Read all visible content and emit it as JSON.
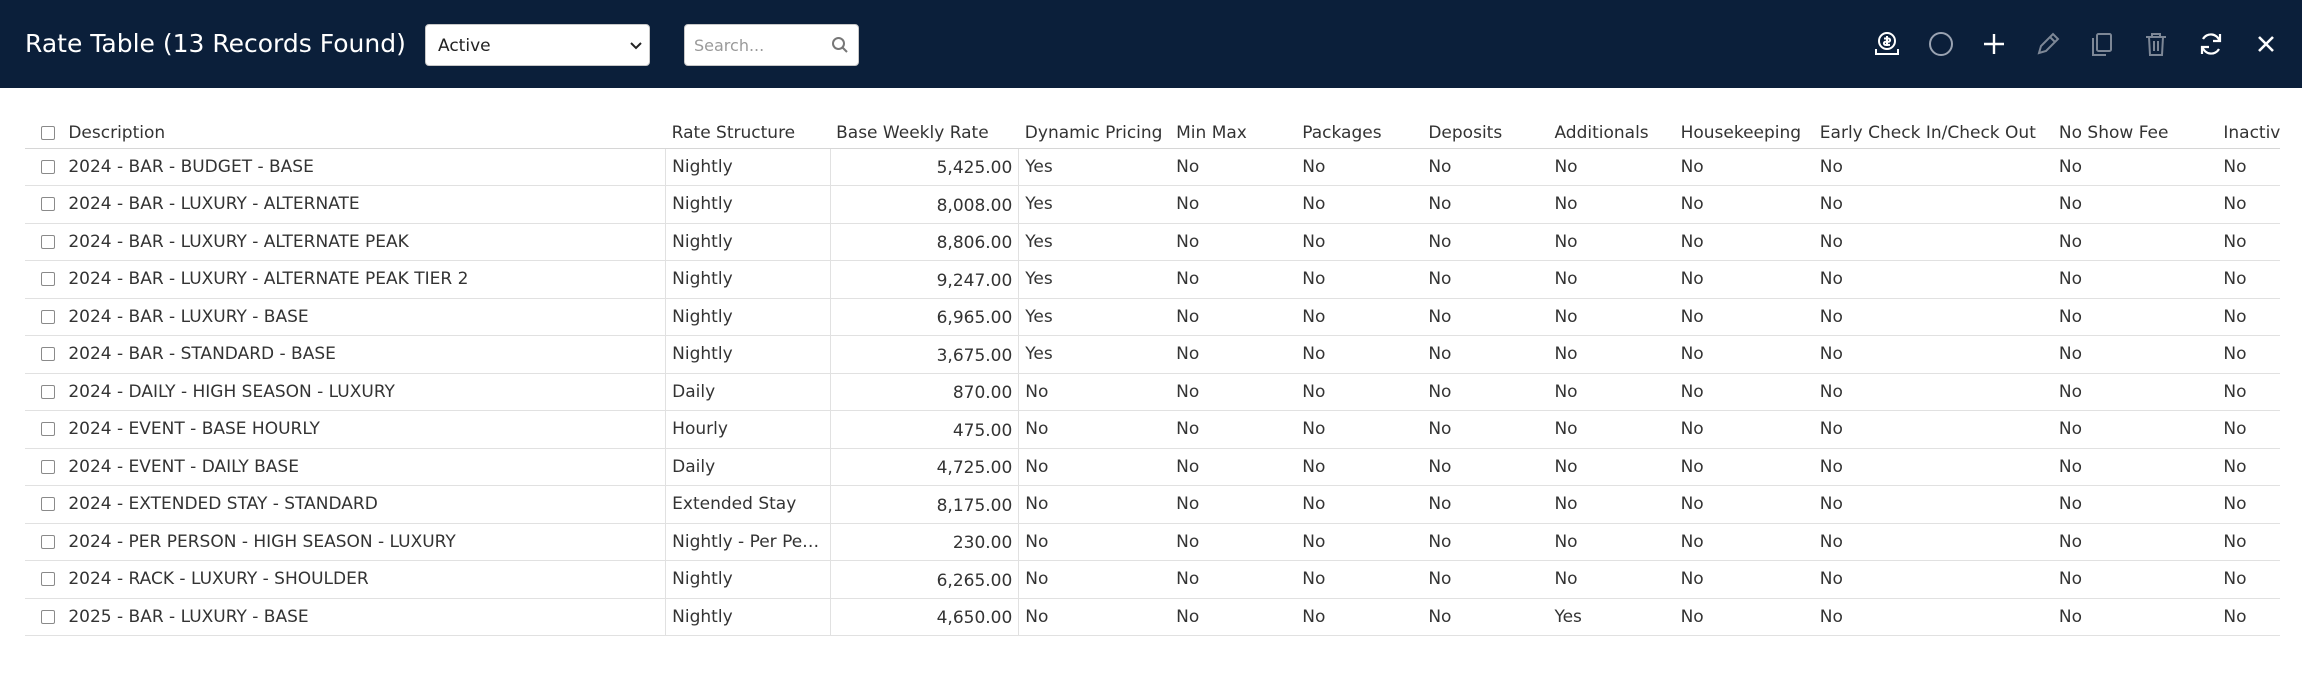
{
  "header": {
    "title": "Rate Table (13 Records Found)",
    "status_filter": {
      "selected": "Active"
    },
    "search": {
      "placeholder": "Search..."
    },
    "toolbar_icons": [
      "money-bag-icon",
      "circle-icon",
      "plus-icon",
      "pencil-icon",
      "copy-icon",
      "trash-icon",
      "refresh-icon",
      "close-icon"
    ]
  },
  "colors": {
    "topbar": "#0b1f3a",
    "text": "#333333",
    "border": "#e1e1e1"
  },
  "table": {
    "columns": [
      "Description",
      "Rate Structure",
      "Base Weekly Rate",
      "Dynamic Pricing",
      "Min Max",
      "Packages",
      "Deposits",
      "Additionals",
      "Housekeeping",
      "Early Check In/Check Out",
      "No Show Fee",
      "Inactive"
    ],
    "rows": [
      [
        "2024 - BAR - BUDGET - BASE",
        "Nightly",
        "5,425.00",
        "Yes",
        "No",
        "No",
        "No",
        "No",
        "No",
        "No",
        "No",
        "No"
      ],
      [
        "2024 - BAR - LUXURY - ALTERNATE",
        "Nightly",
        "8,008.00",
        "Yes",
        "No",
        "No",
        "No",
        "No",
        "No",
        "No",
        "No",
        "No"
      ],
      [
        "2024 - BAR - LUXURY - ALTERNATE PEAK",
        "Nightly",
        "8,806.00",
        "Yes",
        "No",
        "No",
        "No",
        "No",
        "No",
        "No",
        "No",
        "No"
      ],
      [
        "2024 - BAR - LUXURY - ALTERNATE PEAK TIER 2",
        "Nightly",
        "9,247.00",
        "Yes",
        "No",
        "No",
        "No",
        "No",
        "No",
        "No",
        "No",
        "No"
      ],
      [
        "2024 - BAR - LUXURY - BASE",
        "Nightly",
        "6,965.00",
        "Yes",
        "No",
        "No",
        "No",
        "No",
        "No",
        "No",
        "No",
        "No"
      ],
      [
        "2024 - BAR - STANDARD - BASE",
        "Nightly",
        "3,675.00",
        "Yes",
        "No",
        "No",
        "No",
        "No",
        "No",
        "No",
        "No",
        "No"
      ],
      [
        "2024 - DAILY - HIGH SEASON - LUXURY",
        "Daily",
        "870.00",
        "No",
        "No",
        "No",
        "No",
        "No",
        "No",
        "No",
        "No",
        "No"
      ],
      [
        "2024 - EVENT - BASE HOURLY",
        "Hourly",
        "475.00",
        "No",
        "No",
        "No",
        "No",
        "No",
        "No",
        "No",
        "No",
        "No"
      ],
      [
        "2024 - EVENT - DAILY BASE",
        "Daily",
        "4,725.00",
        "No",
        "No",
        "No",
        "No",
        "No",
        "No",
        "No",
        "No",
        "No"
      ],
      [
        "2024 - EXTENDED STAY - STANDARD",
        "Extended Stay",
        "8,175.00",
        "No",
        "No",
        "No",
        "No",
        "No",
        "No",
        "No",
        "No",
        "No"
      ],
      [
        "2024 - PER PERSON - HIGH SEASON - LUXURY",
        "Nightly - Per Per...",
        "230.00",
        "No",
        "No",
        "No",
        "No",
        "No",
        "No",
        "No",
        "No",
        "No"
      ],
      [
        "2024 - RACK - LUXURY - SHOULDER",
        "Nightly",
        "6,265.00",
        "No",
        "No",
        "No",
        "No",
        "No",
        "No",
        "No",
        "No",
        "No"
      ],
      [
        "2025 - BAR - LUXURY - BASE",
        "Nightly",
        "4,650.00",
        "No",
        "No",
        "No",
        "No",
        "Yes",
        "No",
        "No",
        "No",
        "No"
      ]
    ]
  }
}
